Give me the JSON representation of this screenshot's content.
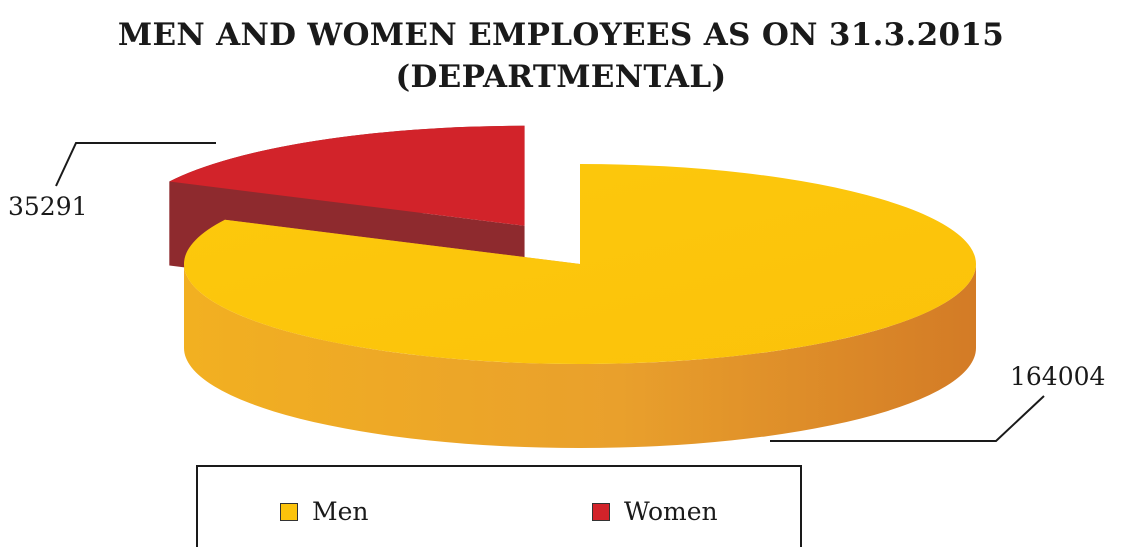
{
  "chart_data": {
    "type": "pie",
    "title": "MEN AND WOMEN EMPLOYEES AS ON 31.3.2015",
    "subtitle": "(DEPARTMENTAL)",
    "three_d": true,
    "exploded": true,
    "legend_position": "bottom",
    "slices": [
      {
        "name": "Men",
        "value": 164004,
        "color": "#fcc30b",
        "side_color": "#e9a12a"
      },
      {
        "name": "Women",
        "value": 35291,
        "color": "#d2232a",
        "side_color": "#8e2a2e"
      }
    ]
  }
}
